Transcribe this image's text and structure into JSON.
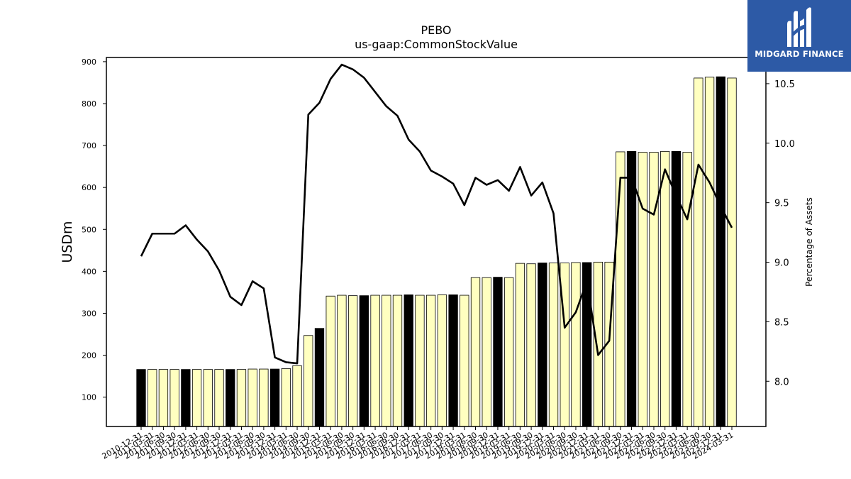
{
  "brand": {
    "name": "MIDGARD FINANCE",
    "color": "#2d5aa6"
  },
  "chart_data": {
    "type": "bar",
    "title": "PEBO",
    "subtitle": "us-gaap:CommonStockValue",
    "ylabel": "USDm",
    "y2label": "Percentage of Assets",
    "ylim": [
      30,
      910
    ],
    "y2lim": [
      7.62,
      10.72
    ],
    "yticks": [
      100,
      200,
      300,
      400,
      500,
      600,
      700,
      800,
      900
    ],
    "y2ticks": [
      "8.0",
      "8.5",
      "9.0",
      "9.5",
      "10.0",
      "10.5"
    ],
    "colors": {
      "bar_light": "#ffffc0",
      "bar_dark": "#000000",
      "line": "#000000"
    },
    "categories": [
      "2010-12-31",
      "2011-03-31",
      "2011-06-30",
      "2011-09-30",
      "2011-12-31",
      "2012-03-31",
      "2012-06-30",
      "2012-09-30",
      "2012-12-31",
      "2013-03-31",
      "2013-06-30",
      "2013-09-30",
      "2013-12-31",
      "2014-03-31",
      "2014-06-30",
      "2014-09-30",
      "2014-12-31",
      "2015-03-31",
      "2015-06-30",
      "2015-09-30",
      "2015-12-31",
      "2016-03-31",
      "2016-06-30",
      "2016-09-30",
      "2016-12-31",
      "2017-03-31",
      "2017-06-30",
      "2017-09-30",
      "2017-12-31",
      "2018-03-31",
      "2018-06-30",
      "2018-09-30",
      "2018-12-31",
      "2019-03-31",
      "2019-06-30",
      "2019-09-30",
      "2019-12-31",
      "2020-03-31",
      "2020-06-30",
      "2020-09-30",
      "2020-12-31",
      "2021-03-31",
      "2021-06-30",
      "2021-09-30",
      "2021-12-31",
      "2022-03-31",
      "2022-06-30",
      "2022-09-30",
      "2022-12-31",
      "2023-03-31",
      "2023-06-30",
      "2023-09-30",
      "2023-12-31",
      "2024-03-31"
    ],
    "series": [
      {
        "type": "bar",
        "values": [
          166,
          166,
          166,
          166,
          166,
          166,
          166,
          166,
          166,
          166,
          167,
          167,
          167,
          168,
          175,
          247,
          264,
          341,
          343,
          342,
          342,
          343,
          343,
          343,
          344,
          343,
          343,
          344,
          344,
          343,
          385,
          385,
          386,
          385,
          419,
          418,
          420,
          420,
          420,
          421,
          421,
          422,
          422,
          685,
          686,
          684,
          684,
          686,
          686,
          684,
          861,
          863,
          864,
          861
        ],
        "highlight": [
          true,
          false,
          false,
          false,
          true,
          false,
          false,
          false,
          true,
          false,
          false,
          false,
          true,
          false,
          false,
          false,
          true,
          false,
          false,
          false,
          true,
          false,
          false,
          false,
          true,
          false,
          false,
          false,
          true,
          false,
          false,
          false,
          true,
          false,
          false,
          false,
          true,
          false,
          false,
          false,
          true,
          false,
          false,
          false,
          true,
          false,
          false,
          false,
          true,
          false,
          false,
          false,
          true,
          false
        ]
      },
      {
        "type": "line",
        "axis": "right",
        "values": [
          9.05,
          9.24,
          9.24,
          9.24,
          9.31,
          9.19,
          9.09,
          8.93,
          8.71,
          8.64,
          8.84,
          8.78,
          8.2,
          8.16,
          8.15,
          10.24,
          10.34,
          10.54,
          10.66,
          10.62,
          10.55,
          10.43,
          10.31,
          10.23,
          10.03,
          9.93,
          9.77,
          9.72,
          9.66,
          9.48,
          9.71,
          9.65,
          9.69,
          9.6,
          9.8,
          9.56,
          9.67,
          9.41,
          8.45,
          8.58,
          8.84,
          8.22,
          8.34,
          9.71,
          9.71,
          9.45,
          9.4,
          9.78,
          9.56,
          9.36,
          9.82,
          9.67,
          9.47,
          9.29
        ]
      }
    ]
  }
}
